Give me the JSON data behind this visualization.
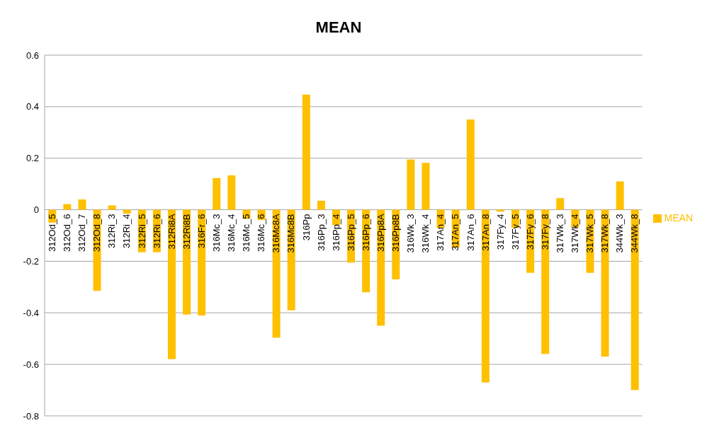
{
  "chart_data": {
    "type": "bar",
    "title": "MEAN",
    "categories": [
      "312Od_5",
      "312Od_6",
      "312Od_7",
      "312Od_8",
      "312Ri_3",
      "312Ri_4",
      "312Ri_5",
      "312Ri_6",
      "312Ri8A",
      "312Ri8B",
      "316Fr_6",
      "316Mc_3",
      "316Mc_4",
      "316Mc_5",
      "316Mc_6",
      "316Mc8A",
      "316Mc8B",
      "316Pp",
      "316Pp_3",
      "316Pp_4",
      "316Pp_5",
      "316Pp_6",
      "316Pp8A",
      "316Pp8B",
      "316Wk_3",
      "316Wk_4",
      "317An_4",
      "317An_5",
      "317An_6",
      "317An_8",
      "317Fy_4",
      "317Fy_5",
      "317Fy_6",
      "317Fy_8",
      "317Wk_3",
      "317Wk_4",
      "317Wk_5",
      "317Wk_8",
      "344Wk_3",
      "344Wk_8"
    ],
    "series": [
      {
        "name": "MEAN",
        "color": "#ffc000",
        "values": [
          -0.05,
          0.022,
          0.04,
          -0.315,
          0.017,
          -0.015,
          -0.165,
          -0.165,
          -0.58,
          -0.407,
          -0.41,
          0.123,
          0.133,
          -0.035,
          -0.04,
          -0.497,
          -0.39,
          0.447,
          0.035,
          -0.06,
          -0.205,
          -0.32,
          -0.45,
          -0.27,
          0.195,
          0.182,
          -0.072,
          -0.147,
          0.35,
          -0.67,
          -0.007,
          -0.07,
          -0.245,
          -0.56,
          0.045,
          -0.068,
          -0.245,
          -0.57,
          0.11,
          -0.7
        ]
      }
    ],
    "ylim": [
      -0.8,
      0.6
    ],
    "yticks": [
      -0.8,
      -0.6,
      -0.4,
      -0.2,
      0,
      0.2,
      0.4,
      0.6
    ],
    "grid": "y",
    "legend": "right"
  }
}
